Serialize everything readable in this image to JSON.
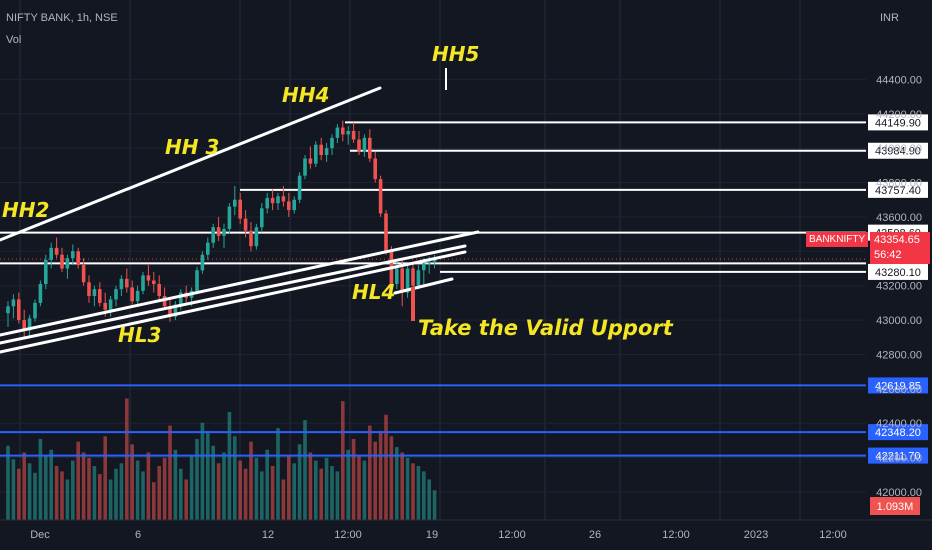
{
  "header": {
    "symbol": "NIFTY BANK, 1h, NSE",
    "volume_label": "Vol",
    "currency": "INR"
  },
  "ticker_tag": {
    "label": "BANKNIFTY",
    "price": "43354.65",
    "countdown": "56:42",
    "color": "#f23645"
  },
  "colors": {
    "background": "#131722",
    "up": "#26a69a",
    "down": "#ef5350",
    "annotation": "#f5e623",
    "blue_line": "#2962ff"
  },
  "annotations": {
    "hh2": "HH2",
    "hh3": "HH 3",
    "hh4": "HH4",
    "hh5": "HH5",
    "hl3": "HL3",
    "hl4": "HL4",
    "note": "Take the Valid Upport"
  },
  "chart_data": {
    "type": "candlestick",
    "yaxis": {
      "min": 42000,
      "max": 44600,
      "ticks": [
        44400,
        44200,
        44000,
        43800,
        43600,
        43400,
        43200,
        43000,
        42800,
        42600,
        42400,
        42200,
        42000
      ],
      "tick_labels": [
        "44400.00",
        "44200.00",
        "44000.00",
        "43800.00",
        "43600.00",
        "43400.00",
        "43200.00",
        "43000.00",
        "42800.00",
        "42600.00",
        "42400.00",
        "42200.00",
        "42000.00"
      ]
    },
    "xaxis": {
      "tick_labels": [
        "Dec",
        "6",
        "12",
        "12:00",
        "19",
        "12:00",
        "26",
        "12:00",
        "2023",
        "12:00"
      ]
    },
    "price_levels": [
      {
        "label": "44149.90",
        "value": 44149.9
      },
      {
        "label": "43984.90",
        "value": 43984.9
      },
      {
        "label": "43757.40",
        "value": 43757.4
      },
      {
        "label": "43508.60",
        "value": 43508.6
      },
      {
        "label": "43280.10",
        "value": 43280.1
      }
    ],
    "blue_levels": [
      {
        "label": "42619.85",
        "value": 42619.85
      },
      {
        "label": "42348.20",
        "value": 42348.2
      },
      {
        "label": "42211.70",
        "value": 42211.7
      }
    ],
    "current_price": 43354.65,
    "volume_last": "1.093M",
    "candles": [
      [
        43040,
        43110,
        42960,
        43080
      ],
      [
        43080,
        43150,
        43010,
        43120
      ],
      [
        43120,
        43160,
        42980,
        43000
      ],
      [
        43000,
        43060,
        42900,
        42940
      ],
      [
        42940,
        43030,
        42900,
        43010
      ],
      [
        43010,
        43120,
        42990,
        43100
      ],
      [
        43100,
        43230,
        43080,
        43210
      ],
      [
        43210,
        43380,
        43180,
        43350
      ],
      [
        43350,
        43450,
        43300,
        43420
      ],
      [
        43420,
        43480,
        43360,
        43380
      ],
      [
        43380,
        43420,
        43280,
        43300
      ],
      [
        43300,
        43380,
        43240,
        43360
      ],
      [
        43360,
        43440,
        43320,
        43400
      ],
      [
        43400,
        43420,
        43300,
        43320
      ],
      [
        43320,
        43360,
        43200,
        43220
      ],
      [
        43220,
        43260,
        43100,
        43140
      ],
      [
        43140,
        43200,
        43080,
        43180
      ],
      [
        43180,
        43220,
        43080,
        43100
      ],
      [
        43100,
        43160,
        43020,
        43060
      ],
      [
        43060,
        43140,
        43020,
        43120
      ],
      [
        43120,
        43200,
        43080,
        43180
      ],
      [
        43180,
        43260,
        43140,
        43240
      ],
      [
        43240,
        43300,
        43160,
        43190
      ],
      [
        43190,
        43230,
        43090,
        43110
      ],
      [
        43110,
        43200,
        43080,
        43170
      ],
      [
        43170,
        43280,
        43150,
        43260
      ],
      [
        43260,
        43320,
        43200,
        43230
      ],
      [
        43230,
        43280,
        43160,
        43210
      ],
      [
        43210,
        43260,
        43120,
        43140
      ],
      [
        43140,
        43190,
        43060,
        43080
      ],
      [
        43080,
        43120,
        42990,
        43020
      ],
      [
        43020,
        43110,
        43000,
        43090
      ],
      [
        43090,
        43180,
        43060,
        43160
      ],
      [
        43160,
        43200,
        43100,
        43130
      ],
      [
        43130,
        43190,
        43080,
        43170
      ],
      [
        43170,
        43310,
        43150,
        43290
      ],
      [
        43290,
        43400,
        43270,
        43380
      ],
      [
        43380,
        43480,
        43350,
        43450
      ],
      [
        43450,
        43560,
        43420,
        43540
      ],
      [
        43540,
        43600,
        43460,
        43490
      ],
      [
        43490,
        43560,
        43420,
        43530
      ],
      [
        43530,
        43680,
        43500,
        43660
      ],
      [
        43660,
        43780,
        43610,
        43700
      ],
      [
        43700,
        43740,
        43560,
        43590
      ],
      [
        43590,
        43640,
        43480,
        43520
      ],
      [
        43520,
        43570,
        43400,
        43430
      ],
      [
        43430,
        43560,
        43410,
        43540
      ],
      [
        43540,
        43680,
        43510,
        43650
      ],
      [
        43650,
        43740,
        43620,
        43710
      ],
      [
        43710,
        43760,
        43640,
        43680
      ],
      [
        43680,
        43740,
        43640,
        43720
      ],
      [
        43720,
        43780,
        43660,
        43690
      ],
      [
        43690,
        43740,
        43600,
        43640
      ],
      [
        43640,
        43720,
        43620,
        43700
      ],
      [
        43700,
        43860,
        43680,
        43840
      ],
      [
        43840,
        43960,
        43820,
        43940
      ],
      [
        43940,
        44010,
        43880,
        43910
      ],
      [
        43910,
        44040,
        43890,
        44020
      ],
      [
        44020,
        44060,
        43930,
        43960
      ],
      [
        43960,
        44030,
        43920,
        44000
      ],
      [
        44000,
        44080,
        43960,
        44060
      ],
      [
        44060,
        44140,
        44030,
        44120
      ],
      [
        44120,
        44160,
        44040,
        44080
      ],
      [
        44080,
        44130,
        44020,
        44100
      ],
      [
        44100,
        44150,
        44030,
        44050
      ],
      [
        44050,
        44100,
        43960,
        43980
      ],
      [
        43980,
        44080,
        43950,
        44060
      ],
      [
        44060,
        44110,
        43920,
        43940
      ],
      [
        43940,
        43980,
        43800,
        43820
      ],
      [
        43820,
        43840,
        43600,
        43620
      ],
      [
        43620,
        43640,
        43380,
        43400
      ],
      [
        43400,
        43430,
        43190,
        43210
      ],
      [
        43210,
        43330,
        43180,
        43300
      ],
      [
        43300,
        43360,
        43080,
        43160
      ],
      [
        43160,
        43330,
        43130,
        43300
      ],
      [
        43300,
        43340,
        43170,
        43200
      ],
      [
        43200,
        43320,
        43180,
        43290
      ],
      [
        43290,
        43360,
        43200,
        43330
      ],
      [
        43330,
        43370,
        43270,
        43340
      ],
      [
        43340,
        43380,
        43300,
        43355
      ]
    ],
    "volumes": [
      0.55,
      0.45,
      0.38,
      0.5,
      0.42,
      0.35,
      0.6,
      0.48,
      0.52,
      0.4,
      0.36,
      0.3,
      0.44,
      0.58,
      0.5,
      0.46,
      0.4,
      0.34,
      0.62,
      0.3,
      0.38,
      0.42,
      0.9,
      0.56,
      0.44,
      0.36,
      0.5,
      0.28,
      0.4,
      0.46,
      0.7,
      0.52,
      0.38,
      0.3,
      0.48,
      0.6,
      0.72,
      0.66,
      0.55,
      0.42,
      0.5,
      0.8,
      0.62,
      0.44,
      0.38,
      0.58,
      0.46,
      0.36,
      0.52,
      0.4,
      0.68,
      0.3,
      0.48,
      0.42,
      0.56,
      0.74,
      0.5,
      0.44,
      0.38,
      0.46,
      0.4,
      0.36,
      0.88,
      0.52,
      0.6,
      0.48,
      0.44,
      0.7,
      0.58,
      0.66,
      0.78,
      0.62,
      0.54,
      0.5,
      0.46,
      0.42,
      0.4,
      0.36,
      0.3,
      0.22
    ]
  }
}
